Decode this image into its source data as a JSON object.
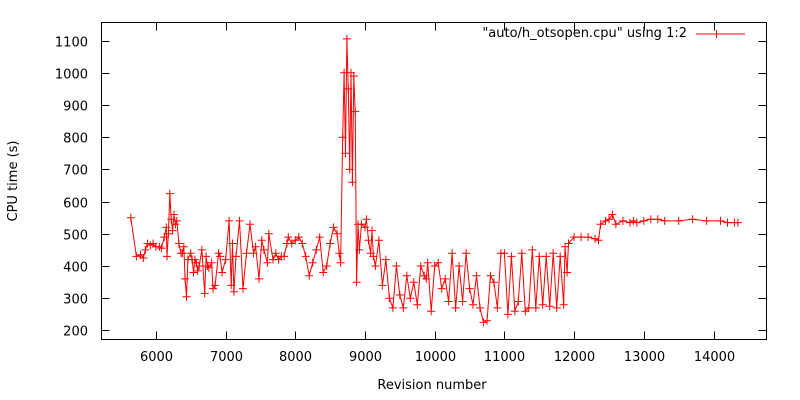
{
  "chart_data": {
    "type": "line",
    "title": "",
    "xlabel": "Revision number",
    "ylabel": "CPU time (s)",
    "xlim": [
      5220,
      14760
    ],
    "ylim": [
      172,
      1156
    ],
    "xticks": [
      6000,
      7000,
      8000,
      9000,
      10000,
      11000,
      12000,
      13000,
      14000
    ],
    "yticks": [
      200,
      300,
      400,
      500,
      600,
      700,
      800,
      900,
      1000,
      1100
    ],
    "grid": false,
    "legend_position": "top-right",
    "series": [
      {
        "name": "\"auto/h_otsopen.cpu\" using 1:2",
        "color": "#ff0000",
        "marker": "plus",
        "x": [
          5640,
          5720,
          5780,
          5820,
          5850,
          5880,
          5920,
          5960,
          6000,
          6050,
          6080,
          6120,
          6150,
          6160,
          6180,
          6200,
          6220,
          6240,
          6260,
          6280,
          6300,
          6330,
          6360,
          6380,
          6400,
          6420,
          6440,
          6460,
          6500,
          6520,
          6540,
          6560,
          6580,
          6600,
          6620,
          6660,
          6700,
          6720,
          6740,
          6760,
          6800,
          6820,
          6850,
          6900,
          6920,
          6950,
          7000,
          7050,
          7080,
          7100,
          7120,
          7150,
          7200,
          7250,
          7300,
          7350,
          7400,
          7430,
          7480,
          7520,
          7550,
          7600,
          7620,
          7680,
          7720,
          7760,
          7800,
          7840,
          7880,
          7900,
          7950,
          8000,
          8050,
          8100,
          8150,
          8200,
          8250,
          8300,
          8350,
          8400,
          8450,
          8500,
          8550,
          8600,
          8630,
          8650,
          8680,
          8700,
          8720,
          8740,
          8760,
          8780,
          8800,
          8820,
          8840,
          8860,
          8880,
          8900,
          8920,
          8950,
          9000,
          9020,
          9050,
          9080,
          9100,
          9120,
          9150,
          9200,
          9250,
          9300,
          9350,
          9400,
          9450,
          9500,
          9550,
          9600,
          9650,
          9700,
          9750,
          9800,
          9850,
          9880,
          9900,
          9950,
          10000,
          10050,
          10100,
          10150,
          10200,
          10250,
          10300,
          10350,
          10400,
          10450,
          10500,
          10550,
          10600,
          10650,
          10700,
          10750,
          10800,
          10850,
          10900,
          10950,
          11000,
          11050,
          11100,
          11150,
          11200,
          11250,
          11300,
          11350,
          11400,
          11450,
          11500,
          11550,
          11600,
          11650,
          11700,
          11750,
          11800,
          11850,
          11870,
          11900,
          11920,
          12000,
          12100,
          12200,
          12300,
          12350,
          12380,
          12450,
          12500,
          12550,
          12600,
          12700,
          12800,
          12850,
          12900,
          13000,
          13100,
          13200,
          13300,
          13500,
          13700,
          13900,
          14100,
          14200,
          14300,
          14350
        ],
        "y": [
          550,
          430,
          435,
          425,
          450,
          470,
          465,
          470,
          460,
          460,
          455,
          490,
          520,
          430,
          500,
          625,
          545,
          510,
          560,
          530,
          540,
          470,
          440,
          440,
          460,
          360,
          305,
          420,
          440,
          420,
          380,
          420,
          410,
          385,
          400,
          450,
          315,
          430,
          400,
          395,
          410,
          330,
          340,
          440,
          430,
          380,
          420,
          540,
          340,
          470,
          320,
          430,
          540,
          330,
          440,
          530,
          440,
          460,
          360,
          480,
          450,
          410,
          500,
          420,
          440,
          420,
          430,
          430,
          470,
          490,
          470,
          480,
          490,
          470,
          430,
          370,
          410,
          450,
          490,
          380,
          400,
          470,
          520,
          500,
          440,
          410,
          800,
          1000,
          750,
          1105,
          950,
          700,
          1000,
          660,
          990,
          880,
          350,
          530,
          450,
          530,
          520,
          545,
          480,
          440,
          510,
          430,
          400,
          480,
          340,
          420,
          300,
          270,
          400,
          310,
          270,
          370,
          300,
          350,
          280,
          400,
          370,
          360,
          410,
          260,
          400,
          410,
          330,
          360,
          290,
          440,
          270,
          400,
          290,
          440,
          330,
          280,
          370,
          270,
          225,
          230,
          370,
          350,
          270,
          440,
          440,
          250,
          430,
          260,
          290,
          440,
          260,
          270,
          450,
          270,
          430,
          280,
          430,
          275,
          440,
          270,
          430,
          280,
          460,
          380,
          470,
          490,
          490,
          490,
          485,
          480,
          530,
          540,
          545,
          560,
          530,
          540,
          535,
          540,
          535,
          540,
          545,
          545,
          540,
          540,
          545,
          540,
          540,
          535,
          535,
          535
        ]
      }
    ]
  }
}
